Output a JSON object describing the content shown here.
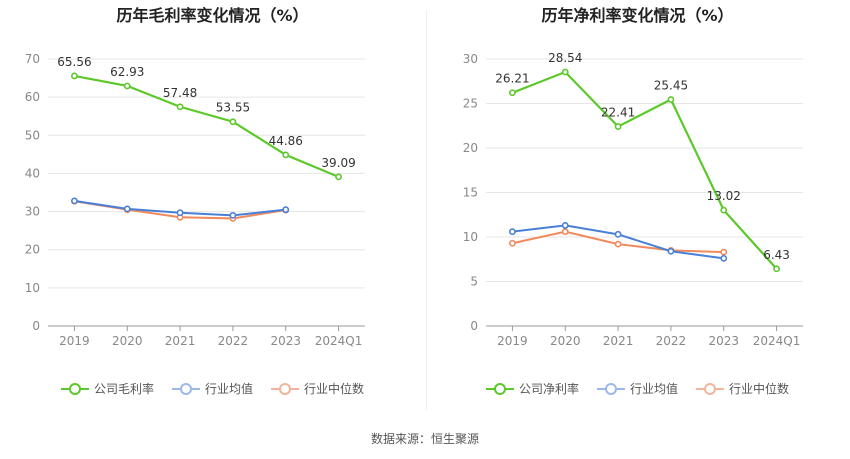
{
  "charts": [
    {
      "title": "历年毛利率变化情况（%）",
      "chart_data": {
        "type": "line",
        "categories": [
          "2019",
          "2020",
          "2021",
          "2022",
          "2023",
          "2024Q1"
        ],
        "ylim": [
          0,
          70
        ],
        "yticks": [
          0,
          10,
          20,
          30,
          40,
          50,
          60,
          70
        ],
        "grid": true,
        "legend_position": "bottom",
        "series": [
          {
            "name": "公司毛利率",
            "color": "#5cc82a",
            "values": [
              65.56,
              62.93,
              57.48,
              53.55,
              44.86,
              39.09
            ],
            "labels": [
              "65.56",
              "62.93",
              "57.48",
              "53.55",
              "44.86",
              "39.09"
            ],
            "bold": true
          },
          {
            "name": "行业均值",
            "color": "#4a7fd8",
            "values": [
              32.8,
              30.7,
              29.7,
              29.0,
              30.5,
              null
            ]
          },
          {
            "name": "行业中位数",
            "color": "#f08a5d",
            "values": [
              32.7,
              30.5,
              28.5,
              28.2,
              30.4,
              null
            ]
          }
        ]
      }
    },
    {
      "title": "历年净利率变化情况（%）",
      "chart_data": {
        "type": "line",
        "categories": [
          "2019",
          "2020",
          "2021",
          "2022",
          "2023",
          "2024Q1"
        ],
        "ylim": [
          0,
          30
        ],
        "yticks": [
          0,
          5,
          10,
          15,
          20,
          25,
          30
        ],
        "grid": true,
        "legend_position": "bottom",
        "series": [
          {
            "name": "公司净利率",
            "color": "#5cc82a",
            "values": [
              26.21,
              28.54,
              22.41,
              25.45,
              13.02,
              6.43
            ],
            "labels": [
              "26.21",
              "28.54",
              "22.41",
              "25.45",
              "13.02",
              "6.43"
            ],
            "bold": true
          },
          {
            "name": "行业均值",
            "color": "#4a7fd8",
            "values": [
              10.6,
              11.3,
              10.3,
              8.4,
              7.6,
              null
            ]
          },
          {
            "name": "行业中位数",
            "color": "#f08a5d",
            "values": [
              9.3,
              10.6,
              9.2,
              8.5,
              8.3,
              null
            ]
          }
        ]
      }
    }
  ],
  "legend_light_colors": {
    "公司": "#5cc82a",
    "行业均值": "#9bb8ec",
    "行业中位数": "#f4b49c"
  },
  "source": "数据来源：恒生聚源"
}
